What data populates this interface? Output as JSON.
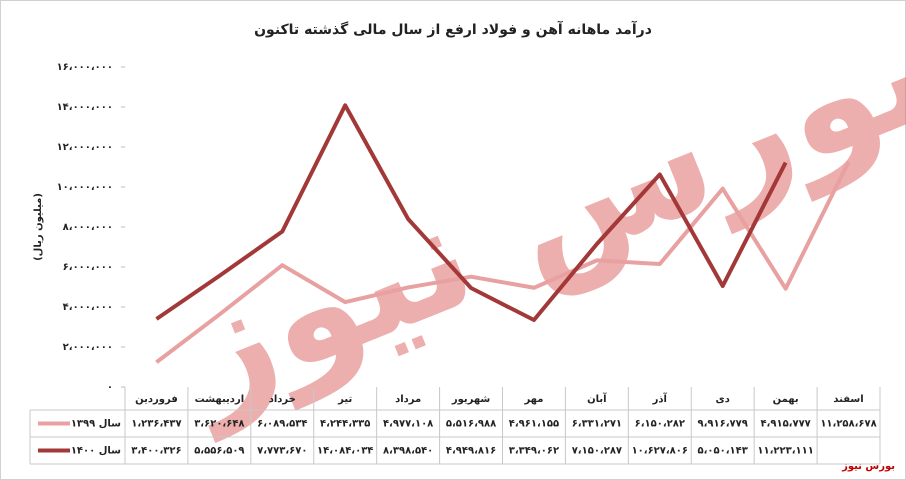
{
  "chart_data": {
    "type": "line",
    "title": "درآمد ماهانه آهن و فولاد ارفع از سال مالی گذشته تاکنون",
    "y_label": "(میلیون ریال)",
    "watermark": "بورس نیوز",
    "source": "بورس نیوز",
    "categories": [
      "فروردین",
      "اردیبهشت",
      "خرداد",
      "تیر",
      "مرداد",
      "شهریور",
      "مهر",
      "آبان",
      "آذر",
      "دی",
      "بهمن",
      "اسفند"
    ],
    "series": [
      {
        "name": "سال ۱۳۹۹",
        "color": "#e8a0a0",
        "values": [
          1236437,
          3620648,
          6089534,
          4244335,
          4977108,
          5516988,
          4961155,
          6331271,
          6150282,
          9916779,
          4915777,
          11258678
        ],
        "value_labels": [
          "۱،۲۳۶،۴۳۷",
          "۳،۶۲۰،۶۴۸",
          "۶،۰۸۹،۵۳۴",
          "۴،۲۴۴،۳۳۵",
          "۴،۹۷۷،۱۰۸",
          "۵،۵۱۶،۹۸۸",
          "۴،۹۶۱،۱۵۵",
          "۶،۳۳۱،۲۷۱",
          "۶،۱۵۰،۲۸۲",
          "۹،۹۱۶،۷۷۹",
          "۴،۹۱۵،۷۷۷",
          "۱۱،۲۵۸،۶۷۸"
        ]
      },
      {
        "name": "سال ۱۴۰۰",
        "color": "#a23838",
        "values": [
          3400326,
          5556509,
          7773670,
          14084034,
          8398540,
          4949816,
          3349062,
          7150287,
          10627806,
          5050143,
          11223111,
          null
        ],
        "value_labels": [
          "۳،۴۰۰،۳۲۶",
          "۵،۵۵۶،۵۰۹",
          "۷،۷۷۳،۶۷۰",
          "۱۴،۰۸۴،۰۳۴",
          "۸،۳۹۸،۵۴۰",
          "۴،۹۴۹،۸۱۶",
          "۳،۳۴۹،۰۶۲",
          "۷،۱۵۰،۲۸۷",
          "۱۰،۶۲۷،۸۰۶",
          "۵،۰۵۰،۱۴۳",
          "۱۱،۲۲۳،۱۱۱",
          null
        ]
      }
    ],
    "ylim": [
      0,
      16000000
    ],
    "yticks": [
      {
        "value": 0,
        "label": "۰"
      },
      {
        "value": 2000000,
        "label": "۲،۰۰۰،۰۰۰"
      },
      {
        "value": 4000000,
        "label": "۴،۰۰۰،۰۰۰"
      },
      {
        "value": 6000000,
        "label": "۶،۰۰۰،۰۰۰"
      },
      {
        "value": 8000000,
        "label": "۸،۰۰۰،۰۰۰"
      },
      {
        "value": 10000000,
        "label": "۱۰،۰۰۰،۰۰۰"
      },
      {
        "value": 12000000,
        "label": "۱۲،۰۰۰،۰۰۰"
      },
      {
        "value": 14000000,
        "label": "۱۴،۰۰۰،۰۰۰"
      },
      {
        "value": 16000000,
        "label": "۱۶،۰۰۰،۰۰۰"
      }
    ],
    "grid": false
  }
}
